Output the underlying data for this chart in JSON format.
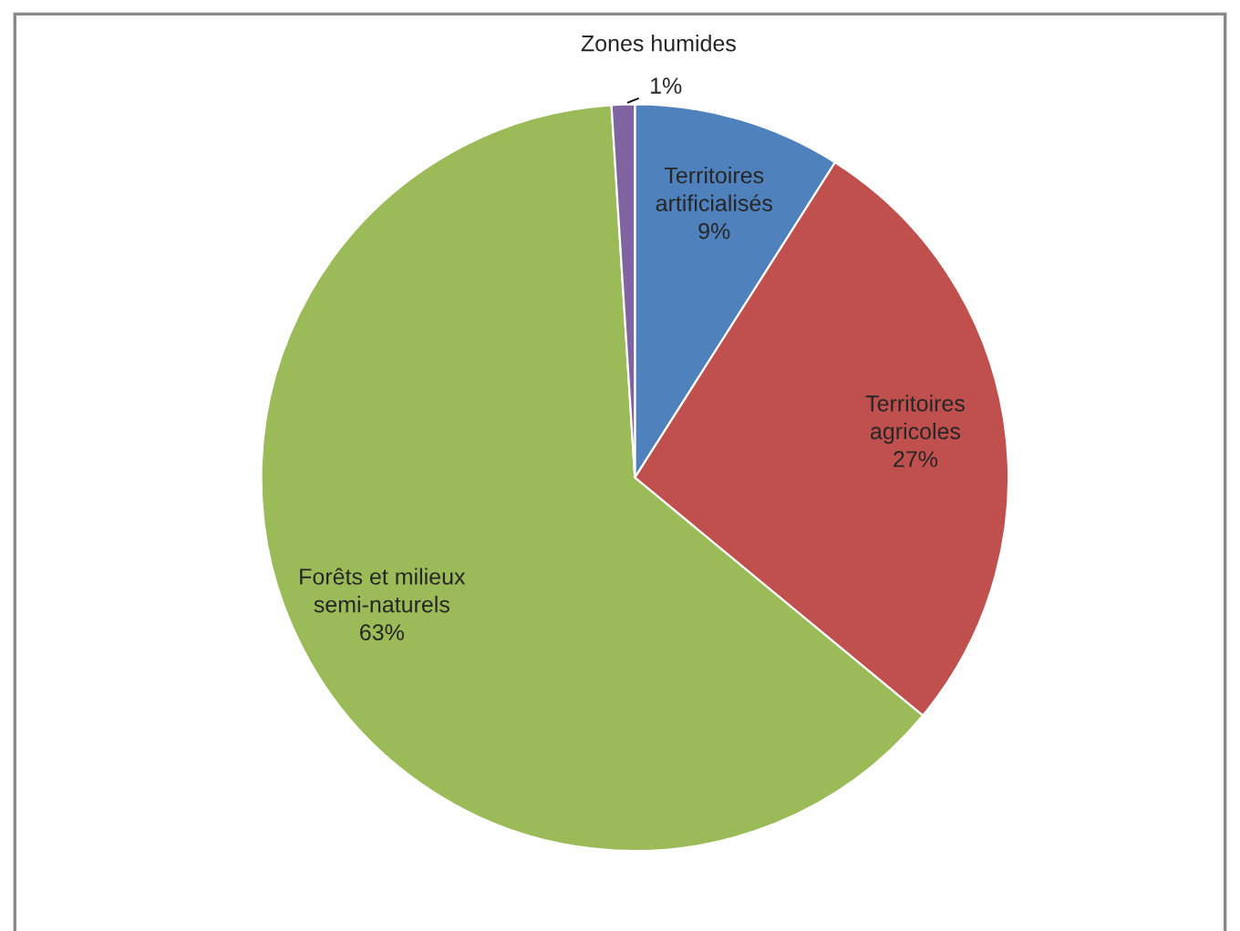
{
  "chart_data": {
    "type": "pie",
    "categories": [
      "Territoires\nartificialisés",
      "Territoires\nagricoles",
      "Forêts et milieux\nsemi-naturels",
      "Zones humides"
    ],
    "values": [
      9,
      27,
      63,
      1
    ],
    "value_labels": [
      "9%",
      "27%",
      "63%",
      "1%"
    ],
    "colors": [
      "#4f81bd",
      "#c0504d",
      "#9bbb59",
      "#8064a2"
    ]
  }
}
